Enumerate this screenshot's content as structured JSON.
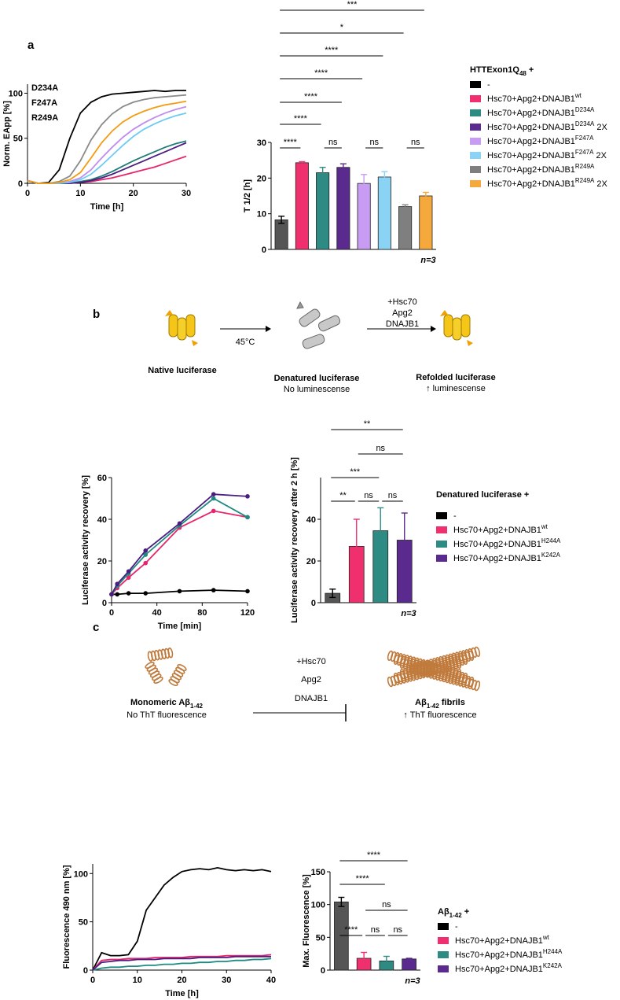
{
  "panels": [
    "a",
    "b",
    "c"
  ],
  "chart_data": [
    {
      "type": "line",
      "xlabel": "Time [h]",
      "ylabel": "Norm. EApp [%]",
      "xlim": [
        0,
        30
      ],
      "ylim": [
        0,
        110
      ],
      "xticks": [
        0,
        10,
        20,
        30
      ],
      "yticks": [
        0,
        50,
        100
      ],
      "annotations": [
        "D234A",
        "F247A",
        "R249A"
      ],
      "x": [
        0,
        2,
        4,
        6,
        8,
        10,
        12,
        14,
        16,
        18,
        20,
        22,
        24,
        26,
        28,
        30
      ],
      "series": [
        {
          "color": "#000000",
          "values": [
            3,
            0,
            1,
            15,
            50,
            78,
            90,
            96,
            99,
            100,
            101,
            102,
            103,
            102,
            103,
            103
          ]
        },
        {
          "color": "#e8246b",
          "values": [
            3,
            0,
            0,
            0,
            0,
            1,
            2,
            4,
            6,
            9,
            12,
            15,
            18,
            22,
            26,
            30
          ]
        },
        {
          "color": "#1f7d76",
          "values": [
            3,
            0,
            0,
            0,
            0,
            2,
            4,
            8,
            13,
            19,
            25,
            30,
            35,
            40,
            44,
            47
          ]
        },
        {
          "color": "#4b1d80",
          "values": [
            3,
            0,
            0,
            0,
            0,
            1,
            3,
            6,
            10,
            15,
            20,
            25,
            30,
            35,
            40,
            45
          ]
        },
        {
          "color": "#bf8cf0",
          "values": [
            3,
            0,
            0,
            0,
            2,
            6,
            15,
            28,
            40,
            51,
            60,
            67,
            73,
            78,
            82,
            85
          ]
        },
        {
          "color": "#6ccbf2",
          "values": [
            3,
            0,
            0,
            0,
            1,
            4,
            10,
            20,
            31,
            42,
            52,
            60,
            66,
            71,
            75,
            78
          ]
        },
        {
          "color": "#8a8a8a",
          "values": [
            3,
            0,
            0,
            2,
            8,
            25,
            48,
            65,
            77,
            85,
            90,
            93,
            95,
            96,
            97,
            98
          ]
        },
        {
          "color": "#f39c12",
          "values": [
            3,
            0,
            0,
            1,
            4,
            12,
            28,
            45,
            58,
            68,
            75,
            80,
            84,
            87,
            89,
            91
          ]
        }
      ]
    },
    {
      "type": "bar",
      "ylabel": "T 1/2 [h]",
      "ylim": [
        0,
        30
      ],
      "yticks": [
        0,
        10,
        20,
        30
      ],
      "annotation": "n=3",
      "values": [
        8.3,
        24.3,
        21.5,
        23,
        18.5,
        20.3,
        12,
        15
      ],
      "errors": [
        1,
        0.3,
        1.5,
        1,
        2.5,
        1.5,
        0.5,
        1
      ],
      "colors": [
        "#555555",
        "#f0306e",
        "#2e8b84",
        "#5b2a8f",
        "#c79cf2",
        "#8ad3f5",
        "#7f7f7f",
        "#f5a83c"
      ],
      "significance": [
        "***",
        "*",
        "****",
        "****",
        "****",
        "****",
        "****",
        "ns",
        "ns",
        "ns"
      ]
    },
    {
      "type": "line",
      "xlabel": "Time [min]",
      "ylabel": "Luciferase activity recovery [%]",
      "markers": true,
      "xlim": [
        0,
        120
      ],
      "ylim": [
        0,
        60
      ],
      "xticks": [
        0,
        40,
        80,
        120
      ],
      "yticks": [
        0,
        20,
        40,
        60
      ],
      "x": [
        0,
        5,
        15,
        30,
        60,
        90,
        120
      ],
      "series": [
        {
          "color": "#000000",
          "values": [
            4,
            4,
            4.5,
            4.5,
            5.5,
            6,
            5.5
          ]
        },
        {
          "color": "#e8246b",
          "values": [
            4,
            7,
            12,
            19,
            36,
            44,
            41
          ]
        },
        {
          "color": "#1f8a82",
          "values": [
            4,
            8,
            14,
            23,
            37,
            50,
            41
          ]
        },
        {
          "color": "#4b1d80",
          "values": [
            4,
            9,
            15,
            25,
            38,
            52,
            51
          ]
        }
      ]
    },
    {
      "type": "bar",
      "ylabel": "Luciferase activity recovery after 2 h [%]",
      "ylim": [
        0,
        60
      ],
      "yticks": [
        0,
        20,
        40
      ],
      "annotation": "n=3",
      "values": [
        4.5,
        27,
        34.5,
        30
      ],
      "errors": [
        2,
        13,
        11,
        13
      ],
      "colors": [
        "#555555",
        "#f0306e",
        "#2e8b84",
        "#5b2a8f"
      ],
      "significance": [
        "**",
        "ns",
        "***",
        "**",
        "ns",
        "ns"
      ]
    },
    {
      "type": "line",
      "xlabel": "Time [h]",
      "ylabel": "Fluorescence 490 nm [%]",
      "xlim": [
        0,
        40
      ],
      "ylim": [
        0,
        110
      ],
      "xticks": [
        0,
        10,
        20,
        30,
        40
      ],
      "yticks": [
        0,
        50,
        100
      ],
      "x": [
        0,
        2,
        4,
        6,
        8,
        10,
        12,
        14,
        16,
        18,
        20,
        22,
        24,
        26,
        28,
        30,
        32,
        34,
        36,
        38,
        40
      ],
      "series": [
        {
          "color": "#000000",
          "values": [
            0,
            18,
            15,
            15,
            16,
            30,
            62,
            75,
            88,
            96,
            102,
            104,
            105,
            104,
            106,
            104,
            103,
            104,
            103,
            104,
            102
          ]
        },
        {
          "color": "#e8246b",
          "values": [
            0,
            10,
            11,
            11,
            12,
            12,
            12,
            13,
            13,
            13,
            13,
            14,
            14,
            14,
            14,
            15,
            15,
            15,
            15,
            15,
            16
          ]
        },
        {
          "color": "#1f8a82",
          "values": [
            0,
            2,
            3,
            3,
            4,
            4,
            5,
            5,
            6,
            6,
            7,
            7,
            8,
            8,
            9,
            9,
            10,
            10,
            11,
            11,
            12
          ]
        },
        {
          "color": "#4b1d80",
          "values": [
            0,
            8,
            9,
            10,
            10,
            11,
            11,
            11,
            12,
            12,
            12,
            12,
            13,
            13,
            13,
            13,
            14,
            14,
            14,
            14,
            14
          ]
        }
      ]
    },
    {
      "type": "bar",
      "ylabel": "Max. Fluorescence [%]",
      "ylim": [
        0,
        150
      ],
      "yticks": [
        0,
        50,
        100,
        150
      ],
      "annotation": "n=3",
      "values": [
        104,
        18,
        14,
        17
      ],
      "errors": [
        7,
        9,
        7,
        1
      ],
      "colors": [
        "#555555",
        "#f0306e",
        "#2e8b84",
        "#5b2a8f"
      ],
      "significance": [
        "****",
        "****",
        "ns",
        "****",
        "ns",
        "ns"
      ]
    }
  ],
  "legends": [
    {
      "title": {
        "text": "HTTExon1Q",
        "subscript": "48",
        "suffix": " +"
      },
      "entries": [
        {
          "color": "#000000",
          "label": "-"
        },
        {
          "color": "#f0306e",
          "label": "Hsc70+Apg2+DNAJB1",
          "superscript": "wt"
        },
        {
          "color": "#2e8b84",
          "label": "Hsc70+Apg2+DNAJB1",
          "superscript": "D234A"
        },
        {
          "color": "#5b2a8f",
          "label": "Hsc70+Apg2+DNAJB1",
          "superscript": "D234A",
          "suffix": " 2X"
        },
        {
          "color": "#c79cf2",
          "label": "Hsc70+Apg2+DNAJB1",
          "superscript": "F247A"
        },
        {
          "color": "#8ad3f5",
          "label": "Hsc70+Apg2+DNAJB1",
          "superscript": "F247A",
          "suffix": " 2X"
        },
        {
          "color": "#7f7f7f",
          "label": "Hsc70+Apg2+DNAJB1",
          "superscript": "R249A"
        },
        {
          "color": "#f5a83c",
          "label": "Hsc70+Apg2+DNAJB1",
          "superscript": "R249A",
          "suffix": " 2X"
        }
      ]
    },
    {
      "title": {
        "text": "Denatured luciferase +"
      },
      "entries": [
        {
          "color": "#000000",
          "label": "-"
        },
        {
          "color": "#f0306e",
          "label": "Hsc70+Apg2+DNAJB1",
          "superscript": "wt"
        },
        {
          "color": "#2e8b84",
          "label": "Hsc70+Apg2+DNAJB1",
          "superscript": "H244A"
        },
        {
          "color": "#5b2a8f",
          "label": "Hsc70+Apg2+DNAJB1",
          "superscript": "K242A"
        }
      ]
    },
    {
      "title": {
        "text": "Aβ",
        "subscript": "1-42",
        "suffix": " +"
      },
      "entries": [
        {
          "color": "#000000",
          "label": "-"
        },
        {
          "color": "#f0306e",
          "label": "Hsc70+Apg2+DNAJB1",
          "superscript": "wt"
        },
        {
          "color": "#2e8b84",
          "label": "Hsc70+Apg2+DNAJB1",
          "superscript": "H244A"
        },
        {
          "color": "#5b2a8f",
          "label": "Hsc70+Apg2+DNAJB1",
          "superscript": "K242A"
        }
      ]
    }
  ],
  "diagrams": {
    "b": {
      "native": "Native luciferase",
      "temperature": "45°C",
      "treatment": [
        "+Hsc70",
        "Apg2",
        "DNAJB1"
      ],
      "denatured": "Denatured luciferase",
      "denatured_note": "No luminescense",
      "refolded": "Refolded luciferase",
      "refolded_note": "↑ luminescense"
    },
    "c": {
      "monomeric": {
        "text": "Monomeric Aβ",
        "subscript": "1-42"
      },
      "monomeric_note": "No ThT fluorescence",
      "treatment": [
        "+Hsc70",
        "Apg2",
        "DNAJB1"
      ],
      "fibrils": {
        "text": "Aβ",
        "subscript": "1-42",
        "suffix": " fibrils"
      },
      "fibrils_note": "↑ ThT fluorescence"
    }
  }
}
